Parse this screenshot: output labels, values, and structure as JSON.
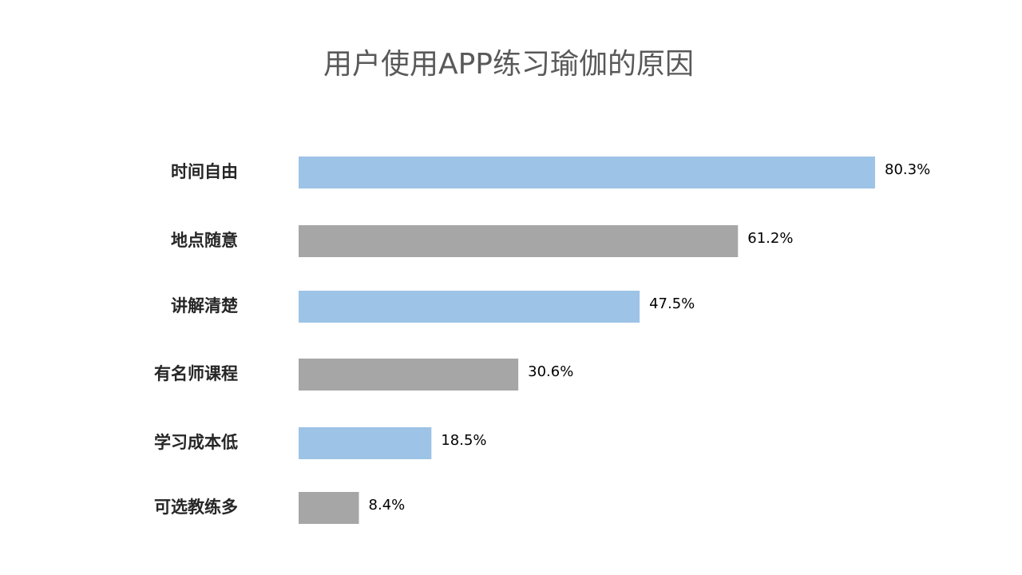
{
  "chart_data": {
    "type": "hbar",
    "title": "用户使用APP练习瑜伽的原因",
    "categories": [
      "时间自由",
      "地点随意",
      "讲解清楚",
      "有名师课程",
      "学习成本低",
      "可选教练多"
    ],
    "values": [
      80.3,
      61.2,
      47.5,
      30.6,
      18.5,
      8.4
    ],
    "value_labels": [
      "80.3%",
      "61.2%",
      "47.5%",
      "30.6%",
      "18.5%",
      "8.4%"
    ],
    "colors": [
      "#9dc3e6",
      "#a6a6a6",
      "#9dc3e6",
      "#a6a6a6",
      "#9dc3e6",
      "#a6a6a6"
    ]
  }
}
